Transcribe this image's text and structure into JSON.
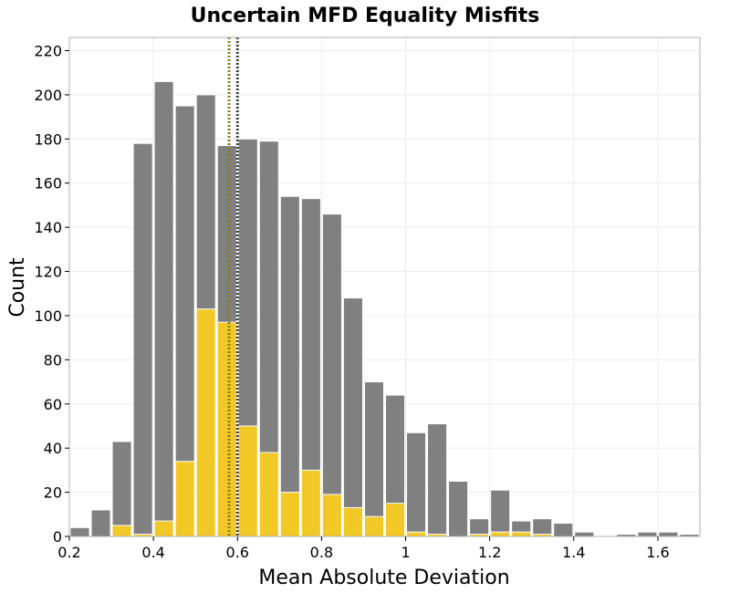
{
  "chart_data": {
    "type": "bar",
    "title": "Uncertain MFD Equality Misfits",
    "xlabel": "Mean Absolute Deviation",
    "ylabel": "Count",
    "xlim": [
      0.2,
      1.7
    ],
    "ylim": [
      0,
      226
    ],
    "bin_width": 0.05,
    "x_ticks": [
      0.2,
      0.4,
      0.6,
      0.8,
      1,
      1.2,
      1.4,
      1.6
    ],
    "x_tick_labels": [
      "0.2",
      "0.4",
      "0.6",
      "0.8",
      "1",
      "1.2",
      "1.4",
      "1.6"
    ],
    "y_ticks": [
      0,
      20,
      40,
      60,
      80,
      100,
      120,
      140,
      160,
      180,
      200,
      220
    ],
    "grid": true,
    "series": [
      {
        "color": "#808080",
        "bin_starts": [
          0.2,
          0.25,
          0.3,
          0.35,
          0.4,
          0.45,
          0.5,
          0.55,
          0.6,
          0.65,
          0.7,
          0.75,
          0.8,
          0.85,
          0.9,
          0.95,
          1.0,
          1.05,
          1.1,
          1.15,
          1.2,
          1.25,
          1.3,
          1.35,
          1.4,
          1.45,
          1.5,
          1.55,
          1.6,
          1.65
        ],
        "values": [
          4,
          12,
          43,
          178,
          206,
          195,
          200,
          177,
          180,
          179,
          154,
          153,
          146,
          108,
          70,
          64,
          47,
          51,
          25,
          8,
          21,
          7,
          8,
          6,
          2,
          0,
          1,
          2,
          2,
          1
        ]
      },
      {
        "color": "#f2c827",
        "bin_starts": [
          0.2,
          0.25,
          0.3,
          0.35,
          0.4,
          0.45,
          0.5,
          0.55,
          0.6,
          0.65,
          0.7,
          0.75,
          0.8,
          0.85,
          0.9,
          0.95,
          1.0,
          1.05,
          1.1,
          1.15,
          1.2,
          1.25,
          1.3,
          1.35,
          1.4,
          1.45,
          1.5,
          1.55,
          1.6,
          1.65
        ],
        "values": [
          0,
          0,
          5,
          1,
          7,
          34,
          103,
          97,
          50,
          38,
          20,
          30,
          19,
          13,
          9,
          15,
          2,
          1,
          0,
          1,
          2,
          2,
          1,
          0,
          0,
          0,
          0,
          0,
          0,
          0
        ]
      }
    ],
    "reference_lines": [
      {
        "x": 0.58,
        "color": "#8b7a1e",
        "style": "dotted"
      },
      {
        "x": 0.6,
        "color": "#404040",
        "style": "dotted"
      }
    ]
  }
}
